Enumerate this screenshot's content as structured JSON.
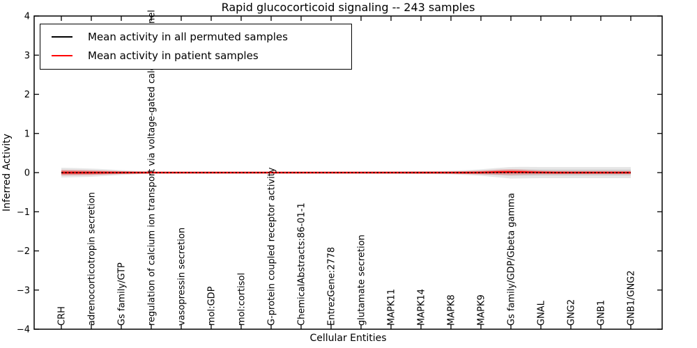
{
  "chart_data": {
    "type": "line",
    "title": "Rapid glucocorticoid signaling -- 243 samples",
    "samples": 243,
    "xlabel": "Cellular Entities",
    "ylabel": "Inferred Activity",
    "ylim": [
      -4,
      4
    ],
    "yticks": [
      4,
      3,
      2,
      1,
      0,
      -1,
      -2,
      -3,
      -4
    ],
    "ytick_labels": [
      "4",
      "3",
      "2",
      "1",
      "0",
      "−1",
      "−2",
      "−3",
      "−4"
    ],
    "grid": false,
    "legend_position": "upper left",
    "categories": [
      "CRH",
      "adrenocorticotropin secretion",
      "Gs family/GTP",
      "regulation of calcium ion transport via voltage-gated calcium channel",
      "vasopressin secretion",
      "mol:GDP",
      "mol:cortisol",
      "G-protein coupled receptor activity",
      "ChemicalAbstracts:86-01-1",
      "EntrezGene:2778",
      "glutamate secretion",
      "MAPK11",
      "MAPK14",
      "MAPK8",
      "MAPK9",
      "Gs family/GDP/Gbeta gamma",
      "GNAL",
      "GNG2",
      "GNB1",
      "GNB1/GNG2"
    ],
    "series": [
      {
        "name": "Mean activity in all permuted samples",
        "color": "#000000",
        "line_style": "dashed",
        "band_color": "#828282",
        "values": [
          0,
          0,
          0,
          0,
          0,
          0,
          0,
          0,
          0,
          0,
          0,
          0,
          0,
          0,
          0,
          0,
          0,
          0,
          0,
          0
        ],
        "band_half_width": [
          0.124,
          0.107,
          0.062,
          0.027,
          0.021,
          0.021,
          0.021,
          0.021,
          0.021,
          0.023,
          0.027,
          0.032,
          0.036,
          0.044,
          0.08,
          0.151,
          0.142,
          0.142,
          0.142,
          0.142
        ]
      },
      {
        "name": "Mean activity in patient samples",
        "color": "#ff0000",
        "line_style": "solid",
        "band_color": "#ff0000",
        "values": [
          0,
          0,
          0,
          0,
          0,
          0,
          0,
          0,
          0,
          0,
          0,
          0,
          0,
          0,
          0,
          0.02,
          0,
          0,
          0,
          0
        ],
        "band_half_width": [
          0.071,
          0.062,
          0.036,
          0.018,
          0.014,
          0.014,
          0.014,
          0.014,
          0.014,
          0.014,
          0.018,
          0.018,
          0.021,
          0.027,
          0.044,
          0.08,
          0.044,
          0.039,
          0.039,
          0.039
        ]
      }
    ]
  }
}
